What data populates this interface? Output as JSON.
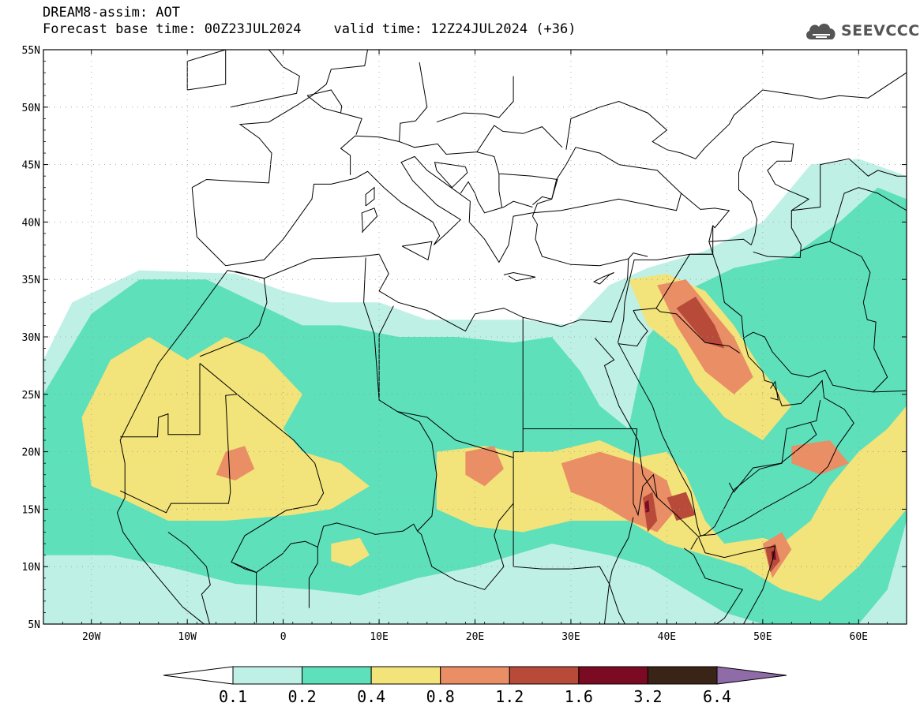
{
  "header": {
    "title_line1": "DREAM8-assim: AOT",
    "title_line2": "Forecast base time: 00Z23JUL2024    valid time: 12Z24JUL2024 (+36)",
    "logo_text": "SEEVCCC",
    "logo_icon": "cloud-icon"
  },
  "map": {
    "lon_range": [
      -25,
      65
    ],
    "lat_range": [
      5,
      55
    ],
    "lat_ticks": [
      {
        "value": 55,
        "label": "55N"
      },
      {
        "value": 50,
        "label": "50N"
      },
      {
        "value": 45,
        "label": "45N"
      },
      {
        "value": 40,
        "label": "40N"
      },
      {
        "value": 35,
        "label": "35N"
      },
      {
        "value": 30,
        "label": "30N"
      },
      {
        "value": 25,
        "label": "25N"
      },
      {
        "value": 20,
        "label": "20N"
      },
      {
        "value": 15,
        "label": "15N"
      },
      {
        "value": 10,
        "label": "10N"
      },
      {
        "value": 5,
        "label": "5N"
      }
    ],
    "lon_ticks": [
      {
        "value": -20,
        "label": "20W"
      },
      {
        "value": -10,
        "label": "10W"
      },
      {
        "value": 0,
        "label": "0"
      },
      {
        "value": 10,
        "label": "10E"
      },
      {
        "value": 20,
        "label": "20E"
      },
      {
        "value": 30,
        "label": "30E"
      },
      {
        "value": 40,
        "label": "40E"
      },
      {
        "value": 50,
        "label": "50E"
      },
      {
        "value": 60,
        "label": "60E"
      }
    ],
    "grid": "dotted"
  },
  "colorbar": {
    "levels": [
      "0.1",
      "0.2",
      "0.4",
      "0.8",
      "1.2",
      "1.6",
      "3.2",
      "6.4"
    ],
    "colors": [
      "#ffffff",
      "#bff0e6",
      "#5ee0ba",
      "#f2e37a",
      "#ea8e66",
      "#b84a3a",
      "#7a0b22",
      "#3a2417",
      "#8f6ba8"
    ]
  }
}
